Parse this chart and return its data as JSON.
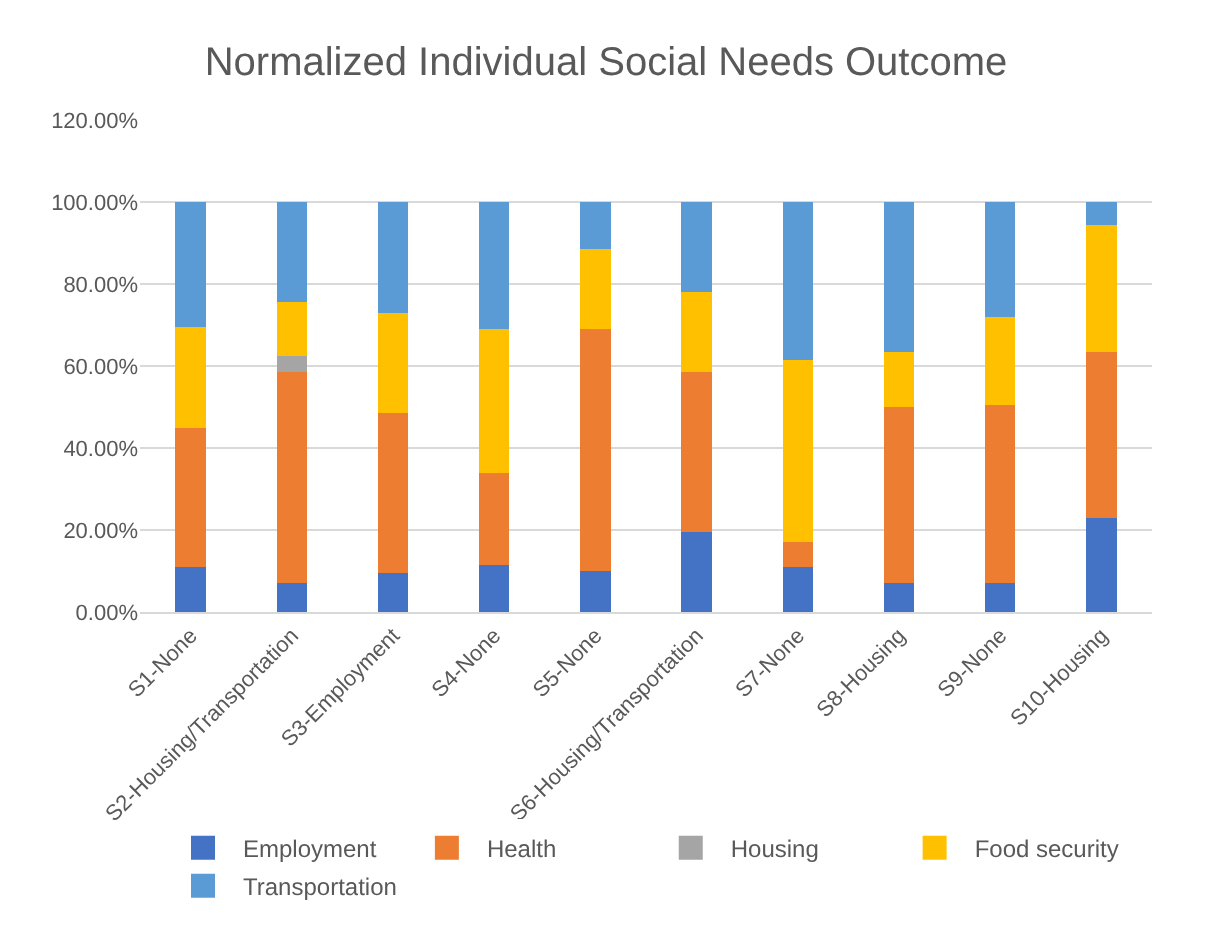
{
  "chart_data": {
    "type": "bar",
    "title": "Normalized Individual Social Needs Outcome",
    "stacked": true,
    "categories": [
      "S1-None",
      "S2-Housing/Transportation",
      "S3-Employment",
      "S4-None",
      "S5-None",
      "S6-Housing/Transportation",
      "S7-None",
      "S8-Housing",
      "S9-None",
      "S10-Housing"
    ],
    "series": [
      {
        "name": "Employment",
        "color": "#4472c4",
        "values": [
          11,
          7,
          9.5,
          11.5,
          10,
          19.5,
          11,
          7,
          7,
          23
        ]
      },
      {
        "name": "Health",
        "color": "#ed7d31",
        "values": [
          34,
          51.5,
          39,
          22.5,
          59,
          39,
          6,
          43,
          43.5,
          40.5
        ]
      },
      {
        "name": "Housing",
        "color": "#a5a5a5",
        "values": [
          0,
          4,
          0,
          0,
          0,
          0,
          0,
          0,
          0,
          0
        ]
      },
      {
        "name": "Food security",
        "color": "#ffc000",
        "values": [
          24.5,
          13,
          24.5,
          35,
          19.5,
          19.5,
          44.5,
          13.5,
          21.5,
          31
        ]
      },
      {
        "name": "Transportation",
        "color": "#5b9bd5",
        "values": [
          30.5,
          24.5,
          27,
          31,
          11.5,
          22,
          38.5,
          36.5,
          28,
          5.5
        ]
      }
    ],
    "ylim": [
      0,
      120
    ],
    "yticks": [
      {
        "value": 0,
        "label": "0.00%"
      },
      {
        "value": 20,
        "label": "20.00%"
      },
      {
        "value": 40,
        "label": "40.00%"
      },
      {
        "value": 60,
        "label": "60.00%"
      },
      {
        "value": 80,
        "label": "80.00%"
      },
      {
        "value": 100,
        "label": "100.00%"
      },
      {
        "value": 120,
        "label": "120.00%"
      }
    ],
    "grid": "y",
    "legend": "bottom"
  }
}
